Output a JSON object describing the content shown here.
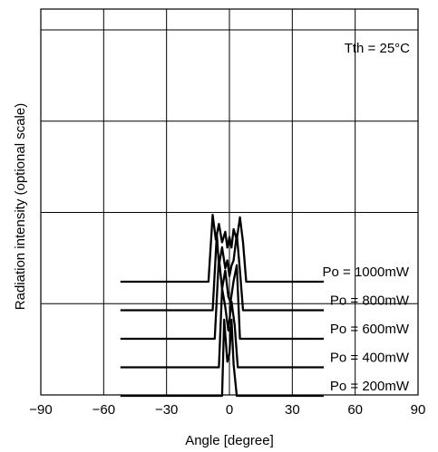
{
  "chart_data": {
    "type": "line",
    "title": "",
    "xlabel": "Angle [degree]",
    "ylabel": "Radiation intensity (optional scale)",
    "xlim": [
      -90,
      90
    ],
    "x_ticks": [
      "−90",
      "−60",
      "−30",
      "0",
      "30",
      "60",
      "90"
    ],
    "y_scale": "optional (unlabeled)",
    "grid": true,
    "legend": "none",
    "annotation": "Tth = 25°C",
    "series": [
      {
        "name": "Po = 1000mW",
        "label_base": "Po",
        "label_value": " = 1000mW",
        "x": [
          -52,
          -10,
          -8,
          -6.5,
          -5,
          -3.5,
          -2,
          -1,
          0,
          1,
          2,
          3.5,
          5,
          6.5,
          8,
          45
        ],
        "y": [
          0,
          0,
          2.55,
          1.6,
          2.2,
          1.5,
          1.9,
          1.3,
          1.7,
          1.3,
          2.0,
          1.6,
          2.45,
          1.5,
          0,
          0
        ]
      },
      {
        "name": "Po = 800mW",
        "label_base": "Po",
        "label_value": " = 800mW",
        "x": [
          -52,
          -8,
          -6,
          -5,
          -3.5,
          -2,
          -1,
          0,
          1,
          2,
          3.5,
          5,
          6.5,
          45
        ],
        "y": [
          0,
          0,
          2.9,
          1.7,
          2.4,
          1.6,
          1.9,
          1.3,
          1.7,
          1.9,
          2.9,
          1.5,
          0,
          0
        ]
      },
      {
        "name": "Po = 600mW",
        "label_base": "Po",
        "label_value": " = 600mW",
        "x": [
          -52,
          -7,
          -5,
          -3.5,
          -2,
          -0.5,
          0.5,
          2,
          3.5,
          5,
          45
        ],
        "y": [
          0,
          0,
          3.1,
          1.9,
          2.6,
          1.6,
          1.4,
          2.2,
          2.8,
          0,
          0
        ]
      },
      {
        "name": "Po = 400mW",
        "label_base": "Po",
        "label_value": " = 400mW",
        "x": [
          -52,
          -5,
          -3.5,
          -2,
          -0.5,
          1,
          2.5,
          4,
          45
        ],
        "y": [
          0,
          0,
          3.0,
          2.3,
          1.4,
          2.5,
          1.6,
          0,
          0
        ]
      },
      {
        "name": "Po = 200mW",
        "label_base": "Po",
        "label_value": " = 200mW",
        "x": [
          -52,
          -3.5,
          -2.5,
          -1,
          0,
          1,
          2,
          3.5,
          45
        ],
        "y": [
          0,
          0,
          2.9,
          1.3,
          1.6,
          2.9,
          1.2,
          0,
          0
        ]
      }
    ]
  },
  "colors": {
    "line": "#000000",
    "grid": "#000000",
    "background": "#ffffff"
  }
}
